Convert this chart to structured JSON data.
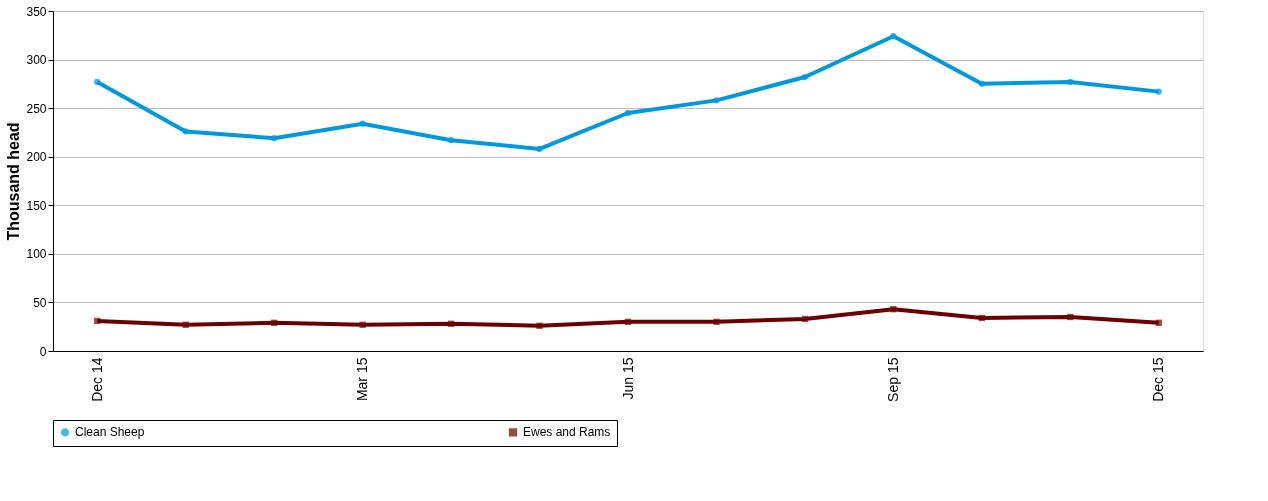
{
  "chart_data": {
    "type": "line",
    "ylabel": "Thousand head",
    "categories": [
      "Dec 14",
      null,
      null,
      "Mar 15",
      null,
      null,
      "Jun 15",
      null,
      null,
      "Sep 15",
      null,
      null,
      "Dec 15"
    ],
    "series": [
      {
        "name": "Clean Sheep",
        "color": "#0099dd",
        "marker": "circle",
        "values": [
          277,
          226,
          219,
          234,
          217,
          208,
          245,
          258,
          282,
          324,
          275,
          277,
          267
        ]
      },
      {
        "name": "Ewes and Rams",
        "color": "#6b0000",
        "marker": "square",
        "values": [
          31,
          27,
          29,
          27,
          28,
          26,
          30,
          30,
          33,
          43,
          34,
          35,
          29
        ]
      }
    ],
    "ylim": [
      0,
      350
    ],
    "yticks": [
      0,
      50,
      100,
      150,
      200,
      250,
      300,
      350
    ],
    "grid": "y",
    "legend": "bottom",
    "line_style": "solid"
  }
}
